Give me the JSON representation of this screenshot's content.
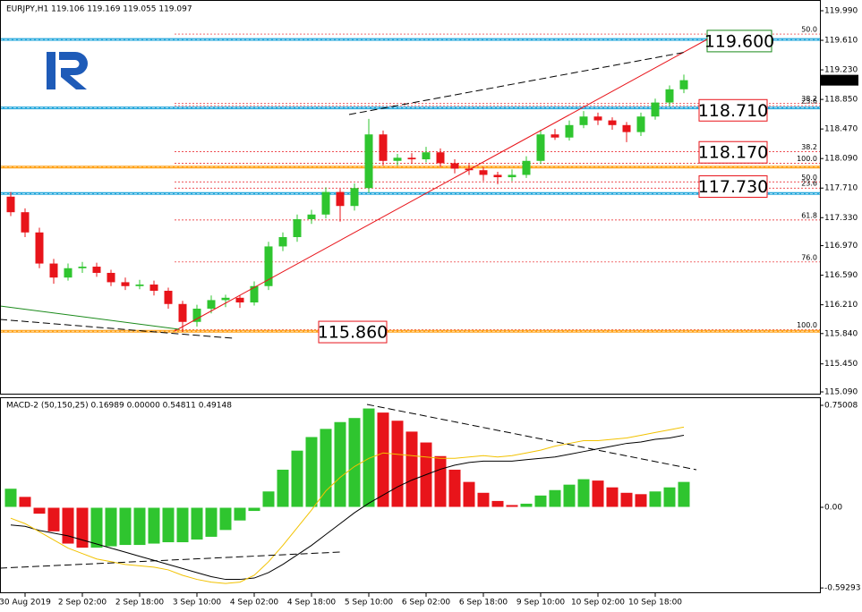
{
  "chart_data": [
    {
      "type": "candlestick",
      "title": "EURJPY,H1  119.106 119.169 119.055 119.097",
      "categories": [
        null,
        "30 Aug 2019",
        null,
        null,
        null,
        "2 Sep 02:00",
        null,
        null,
        null,
        "2 Sep 18:00",
        null,
        null,
        null,
        "3 Sep 10:00",
        null,
        null,
        null,
        "4 Sep 02:00",
        null,
        null,
        null,
        "4 Sep 18:00",
        null,
        null,
        null,
        "5 Sep 10:00",
        null,
        null,
        null,
        "6 Sep 02:00",
        null,
        null,
        null,
        "6 Sep 18:00",
        null,
        null,
        null,
        "9 Sep 10:00",
        null,
        null,
        null,
        "10 Sep 02:00",
        null,
        null,
        null,
        "10 Sep 18:00",
        null,
        null
      ],
      "ohlc": [
        [
          117.6,
          117.66,
          117.35,
          117.4
        ],
        [
          117.4,
          117.45,
          117.08,
          117.14
        ],
        [
          117.14,
          117.2,
          116.68,
          116.74
        ],
        [
          116.74,
          116.8,
          116.48,
          116.56
        ],
        [
          116.56,
          116.74,
          116.52,
          116.68
        ],
        [
          116.68,
          116.76,
          116.62,
          116.7
        ],
        [
          116.7,
          116.75,
          116.57,
          116.62
        ],
        [
          116.62,
          116.66,
          116.45,
          116.5
        ],
        [
          116.5,
          116.56,
          116.4,
          116.45
        ],
        [
          116.45,
          116.53,
          116.41,
          116.47
        ],
        [
          116.47,
          116.52,
          116.33,
          116.39
        ],
        [
          116.39,
          116.43,
          116.16,
          116.22
        ],
        [
          116.22,
          116.26,
          115.86,
          115.99
        ],
        [
          115.99,
          116.21,
          115.93,
          116.16
        ],
        [
          116.16,
          116.33,
          116.1,
          116.27
        ],
        [
          116.27,
          116.34,
          116.18,
          116.3
        ],
        [
          116.3,
          116.33,
          116.17,
          116.24
        ],
        [
          116.24,
          116.51,
          116.2,
          116.45
        ],
        [
          116.45,
          117.02,
          116.4,
          116.96
        ],
        [
          116.96,
          117.14,
          116.9,
          117.08
        ],
        [
          117.08,
          117.37,
          117.02,
          117.31
        ],
        [
          117.31,
          117.43,
          117.25,
          117.37
        ],
        [
          117.37,
          117.72,
          117.32,
          117.66
        ],
        [
          117.66,
          117.7,
          117.28,
          117.48
        ],
        [
          117.48,
          117.77,
          117.42,
          117.71
        ],
        [
          117.71,
          118.6,
          117.65,
          118.4
        ],
        [
          118.4,
          118.45,
          118.0,
          118.06
        ],
        [
          118.06,
          118.15,
          118.0,
          118.1
        ],
        [
          118.1,
          118.16,
          118.02,
          118.08
        ],
        [
          118.08,
          118.24,
          118.04,
          118.17
        ],
        [
          118.17,
          118.22,
          117.98,
          118.03
        ],
        [
          118.03,
          118.08,
          117.9,
          117.96
        ],
        [
          117.96,
          118.02,
          117.88,
          117.94
        ],
        [
          117.94,
          117.98,
          117.8,
          117.88
        ],
        [
          117.88,
          117.92,
          117.76,
          117.85
        ],
        [
          117.85,
          117.95,
          117.8,
          117.88
        ],
        [
          117.88,
          118.12,
          117.84,
          118.06
        ],
        [
          118.06,
          118.46,
          118.02,
          118.4
        ],
        [
          118.4,
          118.47,
          118.33,
          118.36
        ],
        [
          118.36,
          118.58,
          118.32,
          118.52
        ],
        [
          118.52,
          118.7,
          118.48,
          118.63
        ],
        [
          118.63,
          118.68,
          118.52,
          118.58
        ],
        [
          118.58,
          118.62,
          118.46,
          118.52
        ],
        [
          118.52,
          118.56,
          118.3,
          118.43
        ],
        [
          118.43,
          118.68,
          118.38,
          118.63
        ],
        [
          118.63,
          118.86,
          118.59,
          118.81
        ],
        [
          118.81,
          119.03,
          118.76,
          118.98
        ],
        [
          118.98,
          119.169,
          118.93,
          119.097
        ]
      ],
      "up_color": "#2fc52f",
      "down_color": "#e8141a",
      "ylim": [
        115.067,
        120.128
      ],
      "yticks": [
        {
          "value": 119.99,
          "label": "119.990"
        },
        {
          "value": 119.61,
          "label": "119.610"
        },
        {
          "value": 119.23,
          "label": "119.230"
        },
        {
          "value": 118.85,
          "label": "118.850"
        },
        {
          "value": 118.47,
          "label": "118.470"
        },
        {
          "value": 118.09,
          "label": "118.090"
        },
        {
          "value": 117.71,
          "label": "117.710"
        },
        {
          "value": 117.33,
          "label": "117.330"
        },
        {
          "value": 116.97,
          "label": "116.970"
        },
        {
          "value": 116.59,
          "label": "116.590"
        },
        {
          "value": 116.21,
          "label": "116.210"
        },
        {
          "value": 115.84,
          "label": "115.840"
        },
        {
          "value": 115.45,
          "label": "115.450"
        },
        {
          "value": 115.09,
          "label": "115.090"
        }
      ],
      "lines": [
        {
          "price": 119.62,
          "color": "#29a9dc"
        },
        {
          "price": 118.74,
          "color": "#29a9dc"
        },
        {
          "price": 117.98,
          "color": "#ffa31a"
        },
        {
          "price": 117.64,
          "color": "#29a9dc"
        },
        {
          "price": 115.87,
          "color": "#ffa31a"
        }
      ],
      "fibo": [
        {
          "label": "50.0",
          "price": 119.69
        },
        {
          "label": "38.2",
          "price": 118.8
        },
        {
          "label": "23.6",
          "price": 118.77
        },
        {
          "label": "38.2",
          "price": 118.18
        },
        {
          "label": "100.0",
          "price": 118.03
        },
        {
          "label": "50.0",
          "price": 117.79
        },
        {
          "label": "23.6",
          "price": 117.71
        },
        {
          "label": "61.8",
          "price": 117.3
        },
        {
          "label": "76.0",
          "price": 116.76
        },
        {
          "label": "100.0",
          "price": 115.89
        }
      ],
      "levels": [
        {
          "value": 119.6,
          "label": "119.600",
          "color": "#1a8a1a"
        },
        {
          "value": 118.71,
          "label": "118.710",
          "color": "#e8141a"
        },
        {
          "value": 118.17,
          "label": "118.170",
          "color": "#e8141a"
        },
        {
          "value": 117.73,
          "label": "117.730",
          "color": "#e8141a"
        },
        {
          "value": 115.86,
          "label": "115.860",
          "color": "#e8141a"
        }
      ],
      "last_price": 119.097
    },
    {
      "type": "macd",
      "title": "MACD-2 (50,150,25) 0.16989 0.00000 0.54811 0.49148",
      "values": [
        0.14,
        0.08,
        -0.05,
        -0.18,
        -0.27,
        -0.3,
        -0.3,
        -0.29,
        -0.28,
        -0.28,
        -0.27,
        -0.26,
        -0.26,
        -0.24,
        -0.22,
        -0.17,
        -0.1,
        -0.03,
        0.12,
        0.28,
        0.42,
        0.52,
        0.58,
        0.63,
        0.66,
        0.73,
        0.7,
        0.64,
        0.56,
        0.48,
        0.38,
        0.28,
        0.19,
        0.11,
        0.05,
        0.02,
        0.03,
        0.09,
        0.13,
        0.17,
        0.21,
        0.2,
        0.15,
        0.11,
        0.1,
        0.12,
        0.15,
        0.19
      ],
      "up_color": "#2fc52f",
      "down_color": "#e8141a",
      "lines": [
        {
          "color": "#000000",
          "values": [
            -0.13,
            -0.14,
            -0.17,
            -0.19,
            -0.21,
            -0.24,
            -0.27,
            -0.3,
            -0.33,
            -0.36,
            -0.39,
            -0.42,
            -0.45,
            -0.48,
            -0.51,
            -0.53,
            -0.53,
            -0.52,
            -0.48,
            -0.42,
            -0.35,
            -0.28,
            -0.2,
            -0.12,
            -0.04,
            0.03,
            0.09,
            0.15,
            0.2,
            0.24,
            0.28,
            0.31,
            0.33,
            0.34,
            0.34,
            0.34,
            0.35,
            0.36,
            0.37,
            0.39,
            0.41,
            0.43,
            0.45,
            0.47,
            0.48,
            0.5,
            0.51,
            0.53
          ]
        },
        {
          "color": "#f2c200",
          "values": [
            -0.08,
            -0.12,
            -0.18,
            -0.24,
            -0.3,
            -0.34,
            -0.38,
            -0.4,
            -0.42,
            -0.43,
            -0.44,
            -0.46,
            -0.5,
            -0.53,
            -0.55,
            -0.56,
            -0.55,
            -0.5,
            -0.4,
            -0.28,
            -0.15,
            -0.02,
            0.12,
            0.22,
            0.3,
            0.36,
            0.4,
            0.39,
            0.38,
            0.37,
            0.36,
            0.36,
            0.37,
            0.38,
            0.37,
            0.38,
            0.4,
            0.42,
            0.45,
            0.47,
            0.49,
            0.49,
            0.5,
            0.51,
            0.53,
            0.55,
            0.57,
            0.59
          ]
        }
      ],
      "ylim": [
        -0.625,
        0.8027
      ],
      "yticks": [
        0.75008,
        {
          "value": 0,
          "label": "0.00"
        },
        -0.59293
      ]
    }
  ]
}
